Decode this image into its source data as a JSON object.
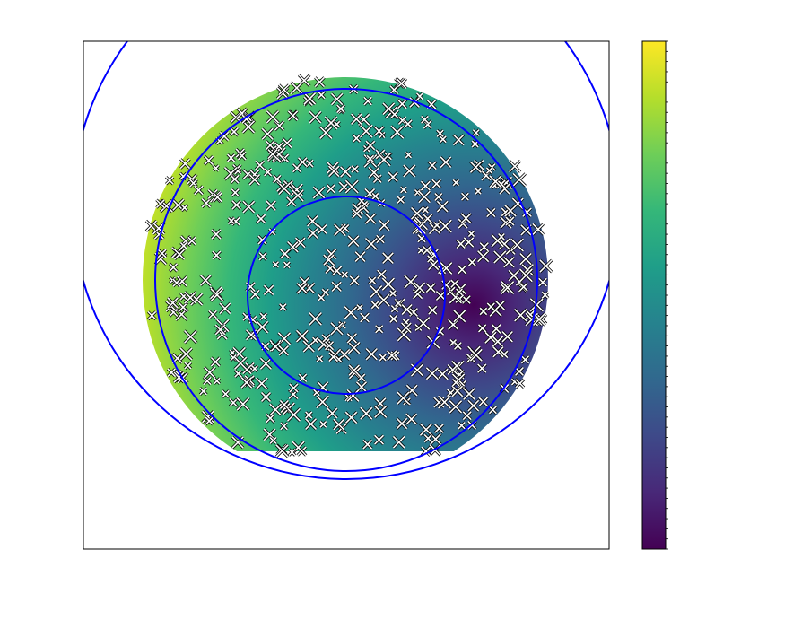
{
  "chart_data": {
    "type": "contour",
    "colormap": [
      "#440154",
      "#482878",
      "#3e4989",
      "#31688e",
      "#26828e",
      "#1f9e89",
      "#35b779",
      "#6ece58",
      "#b5de2b",
      "#fde725"
    ],
    "circle_color": "#0000ff"
  }
}
